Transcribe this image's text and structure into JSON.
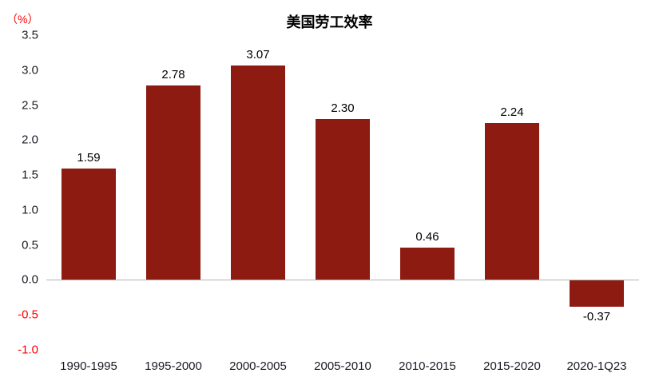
{
  "title": "美国劳工效率",
  "y_unit_label": "（%）",
  "chart_data": {
    "type": "bar",
    "title": "美国劳工效率",
    "xlabel": "",
    "ylabel": "（%）",
    "categories": [
      "1990-1995",
      "1995-2000",
      "2000-2005",
      "2005-2010",
      "2010-2015",
      "2015-2020",
      "2020-1Q23"
    ],
    "values": [
      1.59,
      2.78,
      3.07,
      2.3,
      0.46,
      2.24,
      -0.37
    ],
    "value_labels": [
      "1.59",
      "2.78",
      "3.07",
      "2.30",
      "0.46",
      "2.24",
      "-0.37"
    ],
    "ylim": [
      -1.0,
      3.5
    ],
    "ytick_step": 0.5,
    "yticks": [
      "3.5",
      "3.0",
      "2.5",
      "2.0",
      "1.5",
      "1.0",
      "0.5",
      "0.0",
      "-0.5",
      "-1.0"
    ],
    "grid": false,
    "legend": false
  },
  "colors": {
    "bar": "#8E1B12",
    "negative_tick": "#ff0000",
    "unit_label": "#ff0000",
    "tick_text": "#1a1a24",
    "axis_line": "#b3b3b3",
    "value_label": "#000000",
    "title_text": "#000000"
  }
}
